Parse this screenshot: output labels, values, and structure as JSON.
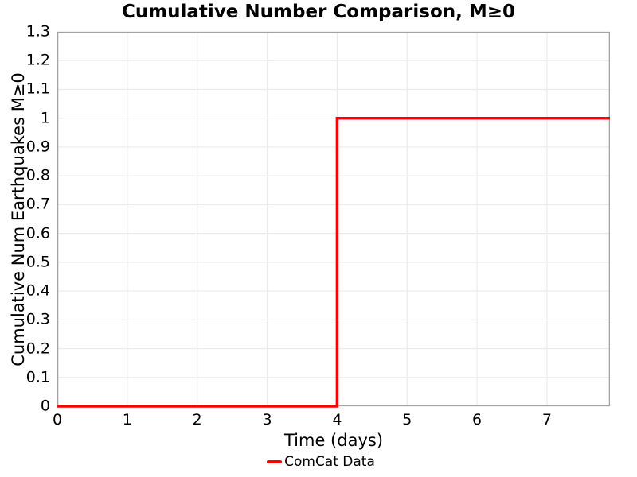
{
  "figure": {
    "background": "#ffffff"
  },
  "chart_data": {
    "type": "line",
    "subtype": "step",
    "title": "Cumulative Number Comparison, M≥0",
    "xlabel": "Time (days)",
    "ylabel": "Cumulative Num Earthquakes M≥0",
    "xlim": [
      0,
      7.9
    ],
    "ylim": [
      0,
      1.3
    ],
    "grid": true,
    "legend_position": "bottom-center",
    "xticks": [
      {
        "value": 0,
        "label": "0"
      },
      {
        "value": 1,
        "label": "1"
      },
      {
        "value": 2,
        "label": "2"
      },
      {
        "value": 3,
        "label": "3"
      },
      {
        "value": 4,
        "label": "4"
      },
      {
        "value": 5,
        "label": "5"
      },
      {
        "value": 6,
        "label": "6"
      },
      {
        "value": 7,
        "label": "7"
      }
    ],
    "yticks": [
      {
        "value": 0,
        "label": "0"
      },
      {
        "value": 0.1,
        "label": "0.1"
      },
      {
        "value": 0.2,
        "label": "0.2"
      },
      {
        "value": 0.3,
        "label": "0.3"
      },
      {
        "value": 0.4,
        "label": "0.4"
      },
      {
        "value": 0.5,
        "label": "0.5"
      },
      {
        "value": 0.6,
        "label": "0.6"
      },
      {
        "value": 0.7,
        "label": "0.7"
      },
      {
        "value": 0.8,
        "label": "0.8"
      },
      {
        "value": 0.9,
        "label": "0.9"
      },
      {
        "value": 1,
        "label": "1"
      },
      {
        "value": 1.1,
        "label": "1.1"
      },
      {
        "value": 1.2,
        "label": "1.2"
      },
      {
        "value": 1.3,
        "label": "1.3"
      }
    ],
    "series": [
      {
        "name": "ComCat Data",
        "color": "#ff0000",
        "line_width": 3.5,
        "x": [
          0,
          4,
          4,
          7.9
        ],
        "y": [
          0,
          0,
          1,
          1
        ]
      }
    ],
    "event": {
      "step_time_days": 4,
      "cumulative_count_after": 1
    },
    "colors": {
      "grid": "#ebebeb",
      "spine": "#a3a3a3",
      "text": "#000000"
    }
  }
}
